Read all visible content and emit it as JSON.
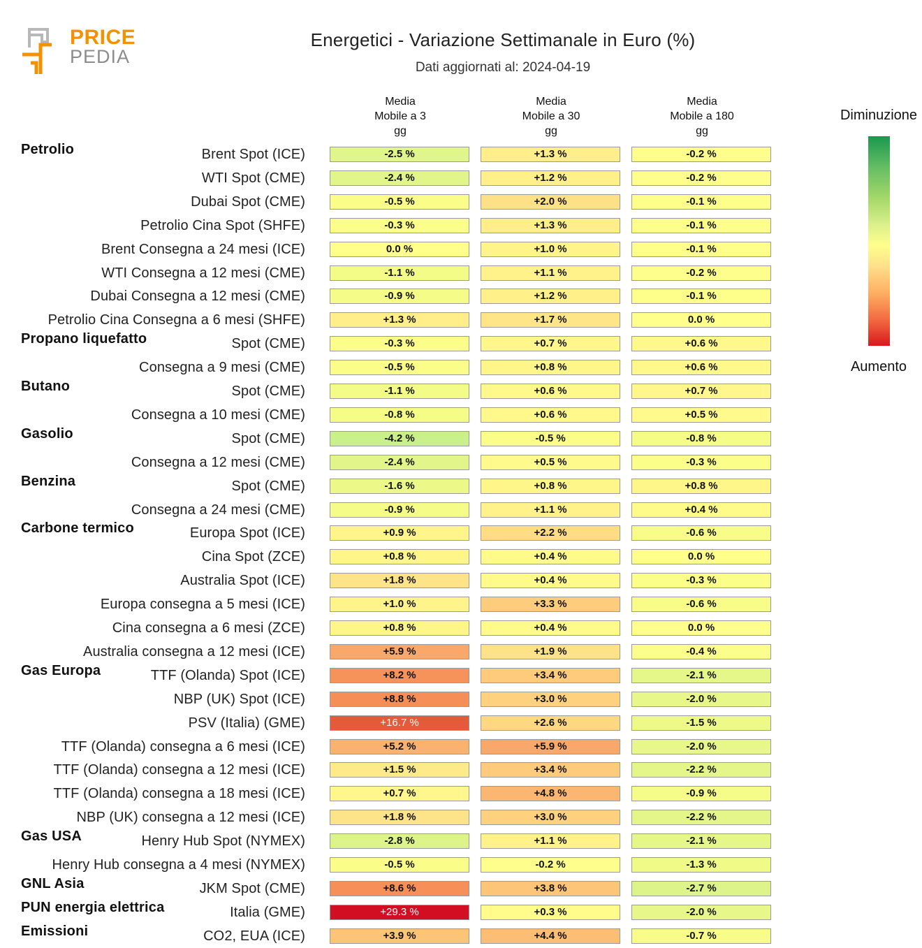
{
  "header": {
    "logo_text_top": "PRICE",
    "logo_text_bottom": "PEDIA",
    "title": "Energetici - Variazione Settimanale in Euro (%)",
    "subtitle": "Dati aggiornati al: 2024-04-19"
  },
  "legend": {
    "top_label": "Diminuzione",
    "bottom_label": "Aumento",
    "colors": [
      "#1a9850",
      "#66bd63",
      "#a6d96a",
      "#d9ef8b",
      "#ffff8c",
      "#fee08b",
      "#fdae61",
      "#f46d43",
      "#d7191c"
    ]
  },
  "chart_data": {
    "type": "table",
    "title": "Energetici - Variazione Settimanale in Euro (%)",
    "columns": [
      {
        "line1": "Media",
        "line2": "Mobile a 3",
        "line3": "gg"
      },
      {
        "line1": "Media",
        "line2": "Mobile a 30",
        "line3": "gg"
      },
      {
        "line1": "Media",
        "line2": "Mobile a 180",
        "line3": "gg"
      }
    ],
    "rows": [
      {
        "group": "Petrolio",
        "label": "Brent Spot (ICE)",
        "values": [
          -2.5,
          1.3,
          -0.2
        ]
      },
      {
        "group": "",
        "label": "WTI Spot (CME)",
        "values": [
          -2.4,
          1.2,
          -0.2
        ]
      },
      {
        "group": "",
        "label": "Dubai Spot (CME)",
        "values": [
          -0.5,
          2.0,
          -0.1
        ]
      },
      {
        "group": "",
        "label": "Petrolio Cina Spot (SHFE)",
        "values": [
          -0.3,
          1.3,
          -0.1
        ]
      },
      {
        "group": "",
        "label": "Brent Consegna a 24 mesi (ICE)",
        "values": [
          0.0,
          1.0,
          -0.1
        ]
      },
      {
        "group": "",
        "label": "WTI Consegna a 12 mesi (CME)",
        "values": [
          -1.1,
          1.1,
          -0.2
        ]
      },
      {
        "group": "",
        "label": "Dubai Consegna a 12 mesi (CME)",
        "values": [
          -0.9,
          1.2,
          -0.1
        ]
      },
      {
        "group": "",
        "label": "Petrolio Cina Consegna a 6 mesi (SHFE)",
        "values": [
          1.3,
          1.7,
          0.0
        ]
      },
      {
        "group": "Propano liquefatto",
        "label": "Spot (CME)",
        "values": [
          -0.3,
          0.7,
          0.6
        ]
      },
      {
        "group": "",
        "label": "Consegna a 9 mesi (CME)",
        "values": [
          -0.5,
          0.8,
          0.6
        ]
      },
      {
        "group": "Butano",
        "label": "Spot (CME)",
        "values": [
          -1.1,
          0.6,
          0.7
        ]
      },
      {
        "group": "",
        "label": "Consegna a 10 mesi (CME)",
        "values": [
          -0.8,
          0.6,
          0.5
        ]
      },
      {
        "group": "Gasolio",
        "label": "Spot (CME)",
        "values": [
          -4.2,
          -0.5,
          -0.8
        ]
      },
      {
        "group": "",
        "label": "Consegna a 12 mesi (CME)",
        "values": [
          -2.4,
          0.5,
          -0.3
        ]
      },
      {
        "group": "Benzina",
        "label": "Spot (CME)",
        "values": [
          -1.6,
          0.8,
          0.8
        ]
      },
      {
        "group": "",
        "label": "Consegna a 24 mesi (CME)",
        "values": [
          -0.9,
          1.1,
          0.4
        ]
      },
      {
        "group": "Carbone termico",
        "label": "Europa Spot (ICE)",
        "values": [
          0.9,
          2.2,
          -0.6
        ]
      },
      {
        "group": "",
        "label": "Cina Spot (ZCE)",
        "values": [
          0.8,
          0.4,
          0.0
        ]
      },
      {
        "group": "",
        "label": "Australia Spot (ICE)",
        "values": [
          1.8,
          0.4,
          -0.3
        ]
      },
      {
        "group": "",
        "label": "Europa consegna a 5 mesi (ICE)",
        "values": [
          1.0,
          3.3,
          -0.6
        ]
      },
      {
        "group": "",
        "label": "Cina consegna a 6 mesi (ZCE)",
        "values": [
          0.8,
          0.4,
          0.0
        ]
      },
      {
        "group": "",
        "label": "Australia consegna a 12 mesi (ICE)",
        "values": [
          5.9,
          1.9,
          -0.4
        ]
      },
      {
        "group": "Gas Europa",
        "label": "TTF (Olanda) Spot (ICE)",
        "values": [
          8.2,
          3.4,
          -2.1
        ]
      },
      {
        "group": "",
        "label": "NBP (UK) Spot (ICE)",
        "values": [
          8.8,
          3.0,
          -2.0
        ]
      },
      {
        "group": "",
        "label": "PSV (Italia) (GME)",
        "values": [
          16.7,
          2.6,
          -1.5
        ]
      },
      {
        "group": "",
        "label": "TTF (Olanda) consegna a 6 mesi (ICE)",
        "values": [
          5.2,
          5.9,
          -2.0
        ]
      },
      {
        "group": "",
        "label": "TTF (Olanda) consegna a 12 mesi (ICE)",
        "values": [
          1.5,
          3.4,
          -2.2
        ]
      },
      {
        "group": "",
        "label": "TTF (Olanda) consegna a 18 mesi (ICE)",
        "values": [
          0.7,
          4.8,
          -0.9
        ]
      },
      {
        "group": "",
        "label": "NBP (UK) consegna a 12 mesi (ICE)",
        "values": [
          1.8,
          3.0,
          -2.2
        ]
      },
      {
        "group": "Gas USA",
        "label": "Henry Hub Spot (NYMEX)",
        "values": [
          -2.8,
          1.1,
          -2.1
        ]
      },
      {
        "group": "",
        "label": "Henry Hub consegna a 4 mesi (NYMEX)",
        "values": [
          -0.5,
          -0.2,
          -1.3
        ]
      },
      {
        "group": "GNL Asia",
        "label": "JKM Spot (CME)",
        "values": [
          8.6,
          3.8,
          -2.7
        ]
      },
      {
        "group": "PUN energia elettrica",
        "label": "Italia (GME)",
        "values": [
          29.3,
          0.3,
          -2.0
        ]
      },
      {
        "group": "Emissioni",
        "label": "CO2, EUA (ICE)",
        "values": [
          3.9,
          4.4,
          -0.7
        ]
      }
    ]
  }
}
